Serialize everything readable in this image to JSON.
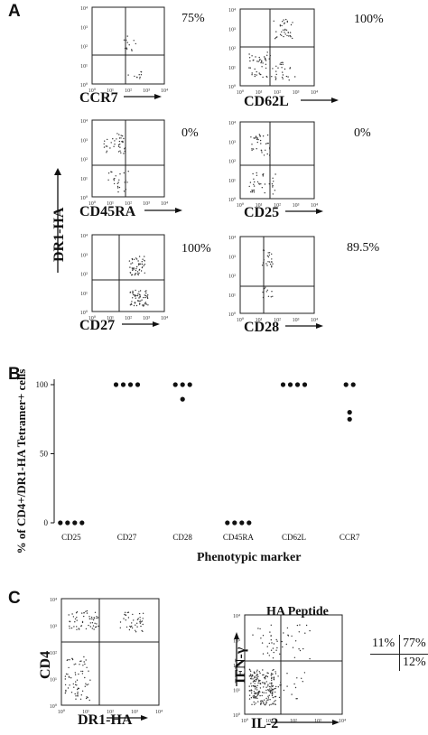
{
  "panel_a": {
    "letter": "A",
    "y_axis_label": "DR1-HA",
    "plots": [
      {
        "marker": "CCR7",
        "percent": "75%"
      },
      {
        "marker": "CD62L",
        "percent": "100%"
      },
      {
        "marker": "CD45RA",
        "percent": "0%"
      },
      {
        "marker": "CD25",
        "percent": "0%"
      },
      {
        "marker": "CD27",
        "percent": "100%"
      },
      {
        "marker": "CD28",
        "percent": "89.5%"
      }
    ],
    "tick_labels": [
      "10⁰",
      "10¹",
      "10²",
      "10³",
      "10⁴"
    ]
  },
  "panel_b": {
    "letter": "B"
  },
  "panel_c": {
    "letter": "C",
    "left": {
      "y_label": "CD4",
      "x_label": "DR1-HA"
    },
    "right": {
      "title": "HA Peptide",
      "y_label": "IFN-γ",
      "x_label": "IL-2"
    },
    "quadrant_stats": {
      "upper_left": "11%",
      "upper_right": "77%",
      "lower_right": "12%"
    }
  },
  "chart_data": {
    "type": "scatter",
    "title": "",
    "xlabel": "Phenotypic marker",
    "ylabel": "% of CD4+/DR1-HA Tetramer+ cells",
    "categories": [
      "CD25",
      "CD27",
      "CD28",
      "CD45RA",
      "CD62L",
      "CCR7"
    ],
    "ylim": [
      0,
      100
    ],
    "yticks": [
      0,
      50,
      100
    ],
    "series": [
      {
        "values": [
          [
            0,
            0,
            0,
            0
          ],
          [
            100,
            100,
            100,
            100
          ],
          [
            100,
            100,
            100,
            89.5
          ],
          [
            0,
            0,
            0,
            0
          ],
          [
            100,
            100,
            100,
            100
          ],
          [
            100,
            100,
            80,
            75
          ]
        ]
      }
    ]
  }
}
